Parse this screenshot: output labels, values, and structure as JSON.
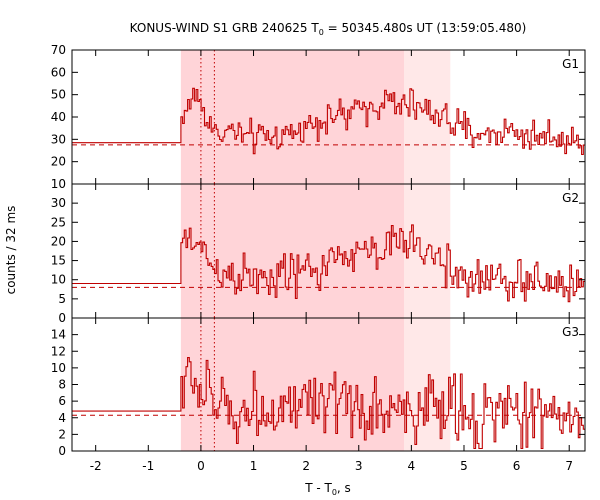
{
  "chart_data": {
    "type": "line",
    "title_prefix": "KONUS-WIND S1 GRB 240625 T",
    "title_sub": "0",
    "title_suffix": " = 50345.480s UT (13:59:05.480)",
    "xlabel_prefix": "T - T",
    "xlabel_sub": "0",
    "xlabel_suffix": ", s",
    "ylabel": "counts / 32 ms",
    "xlim": [
      -2.45,
      7.3
    ],
    "x_ticks": [
      -2,
      -1,
      0,
      1,
      2,
      3,
      4,
      5,
      6,
      7
    ],
    "x_tick_labels": [
      "-2",
      "-1",
      "0",
      "1",
      "2",
      "3",
      "4",
      "5",
      "6",
      "7"
    ],
    "bin_width_s": 0.032,
    "shaded_intervals": [
      {
        "name": "light",
        "x0": -0.38,
        "x1": 4.74,
        "color": "#ffe8e8"
      },
      {
        "name": "dark",
        "x0": -0.38,
        "x1": 3.86,
        "color": "#ffd4d8"
      }
    ],
    "vertical_markers": [
      0.0,
      0.256
    ],
    "line_color": "#c00000",
    "panels": [
      {
        "name": "G1",
        "label": "G1",
        "ylim": [
          10,
          70
        ],
        "y_ticks": [
          10,
          20,
          30,
          40,
          50,
          60,
          70
        ],
        "y_tick_labels": [
          "10",
          "20",
          "30",
          "40",
          "50",
          "60",
          "70"
        ],
        "background": 27.5,
        "pre_level": 28.5,
        "series": {
          "name": "G1 count rate",
          "x": [
            -0.35,
            -0.2,
            -0.1,
            0.0,
            0.1,
            0.2,
            0.3,
            0.5,
            0.7,
            0.9,
            1.1,
            1.3,
            1.5,
            1.7,
            1.9,
            2.0,
            2.2,
            2.4,
            2.6,
            2.8,
            3.0,
            3.2,
            3.4,
            3.6,
            3.8,
            4.0,
            4.2,
            4.4,
            4.6,
            4.8,
            5.0,
            5.2,
            5.4,
            5.6,
            5.8,
            6.0,
            6.2,
            6.4,
            6.6,
            6.8,
            7.0,
            7.25
          ],
          "y": [
            40,
            47,
            52,
            43,
            40,
            36,
            32,
            34,
            33,
            30,
            31,
            31,
            32,
            33,
            34,
            37,
            38,
            40,
            41,
            40,
            44,
            45,
            46,
            47,
            44,
            46,
            43,
            42,
            41,
            36,
            34,
            33,
            32,
            33,
            34,
            33,
            32,
            31,
            32,
            31,
            30,
            29
          ],
          "noise": 5
        }
      },
      {
        "name": "G2",
        "label": "G2",
        "ylim": [
          0,
          35
        ],
        "y_ticks": [
          0,
          5,
          10,
          15,
          20,
          25,
          30
        ],
        "y_tick_labels": [
          "0",
          "5",
          "10",
          "15",
          "20",
          "25",
          "30"
        ],
        "background": 8,
        "pre_level": 9,
        "series": {
          "name": "G2 count rate",
          "x": [
            -0.35,
            -0.2,
            0.0,
            0.2,
            0.4,
            0.6,
            0.8,
            1.0,
            1.2,
            1.4,
            1.6,
            1.8,
            2.0,
            2.2,
            2.4,
            2.6,
            2.8,
            3.0,
            3.2,
            3.4,
            3.6,
            3.8,
            4.0,
            4.2,
            4.4,
            4.6,
            4.8,
            5.0,
            5.4,
            5.8,
            6.2,
            6.6,
            7.0,
            7.25
          ],
          "y": [
            19,
            21,
            18,
            14,
            12,
            11,
            11,
            10,
            10,
            10,
            11,
            12,
            12,
            13,
            14,
            15,
            16,
            17,
            18,
            18,
            19,
            19,
            20,
            18,
            16,
            14,
            12,
            11,
            10,
            10,
            9,
            9,
            9,
            9
          ],
          "noise": 4
        }
      },
      {
        "name": "G3",
        "label": "G3",
        "ylim": [
          0,
          16
        ],
        "y_ticks": [
          0,
          2,
          4,
          6,
          8,
          10,
          12,
          14
        ],
        "y_tick_labels": [
          "0",
          "2",
          "4",
          "6",
          "8",
          "10",
          "12",
          "14"
        ],
        "background": 4.3,
        "pre_level": 4.8,
        "series": {
          "name": "G3 count rate",
          "x": [
            -0.35,
            -0.2,
            0.0,
            0.2,
            0.5,
            1.0,
            1.5,
            2.0,
            2.5,
            3.0,
            3.5,
            4.0,
            4.5,
            5.0,
            5.5,
            6.0,
            6.5,
            7.0,
            7.25
          ],
          "y": [
            8,
            9,
            7,
            6,
            5,
            5,
            5,
            5,
            5,
            5,
            5,
            5,
            5,
            4.5,
            4.5,
            4.5,
            4.5,
            4.5,
            4.5
          ],
          "noise": 3
        }
      }
    ]
  }
}
